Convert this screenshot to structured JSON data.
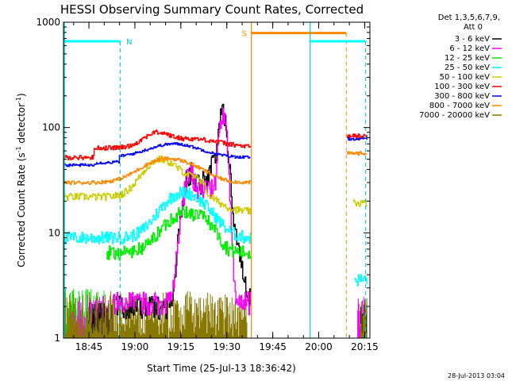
{
  "chart_data": {
    "type": "line",
    "title": "HESSI Observing Summary Count Rates, Corrected",
    "xlabel": "Start Time (25-Jul-13 18:36:42)",
    "ylabel_parts": [
      "Corrected Count Rate (s",
      "-1",
      " detector",
      "-1",
      ")"
    ],
    "ylabel": "Corrected Count Rate (s^-1 detector^-1)",
    "yscale": "log",
    "ylim": [
      1,
      1000
    ],
    "xlim_minutes": [
      0,
      100
    ],
    "x_ticks": [
      {
        "label": "18:45",
        "min": 8.3
      },
      {
        "label": "19:00",
        "min": 23.3
      },
      {
        "label": "19:15",
        "min": 38.3
      },
      {
        "label": "19:30",
        "min": 53.3
      },
      {
        "label": "19:45",
        "min": 68.3
      },
      {
        "label": "20:00",
        "min": 83.3
      },
      {
        "label": "20:15",
        "min": 98.3
      }
    ],
    "y_ticks": [
      {
        "label": "1",
        "value": 1
      },
      {
        "label": "10",
        "value": 10
      },
      {
        "label": "100",
        "value": 100
      },
      {
        "label": "1000",
        "value": 1000
      }
    ],
    "legend_header": [
      "Det 1,3,5,6,7,9,",
      "Att 0"
    ],
    "legend_placement": "right",
    "series": [
      {
        "name": "3 - 6 keV",
        "color": "#000000"
      },
      {
        "name": "6 - 12 keV",
        "color": "#ff00ff"
      },
      {
        "name": "12 - 25 keV",
        "color": "#00ee00"
      },
      {
        "name": "25 - 50 keV",
        "color": "#00ffff"
      },
      {
        "name": "50 - 100 keV",
        "color": "#cccc00"
      },
      {
        "name": "100 - 300 keV",
        "color": "#ff0000"
      },
      {
        "name": "300 - 800 keV",
        "color": "#0000ff"
      },
      {
        "name": "800 - 7000 keV",
        "color": "#ff8800"
      },
      {
        "name": "7000 - 20000 keV",
        "color": "#887700"
      }
    ],
    "annotations": [
      {
        "text": "N",
        "color": "#00cccc"
      },
      {
        "text": "S",
        "color": "#ff8800"
      }
    ],
    "date_stamp": "28-Jul-2013 03:04"
  }
}
